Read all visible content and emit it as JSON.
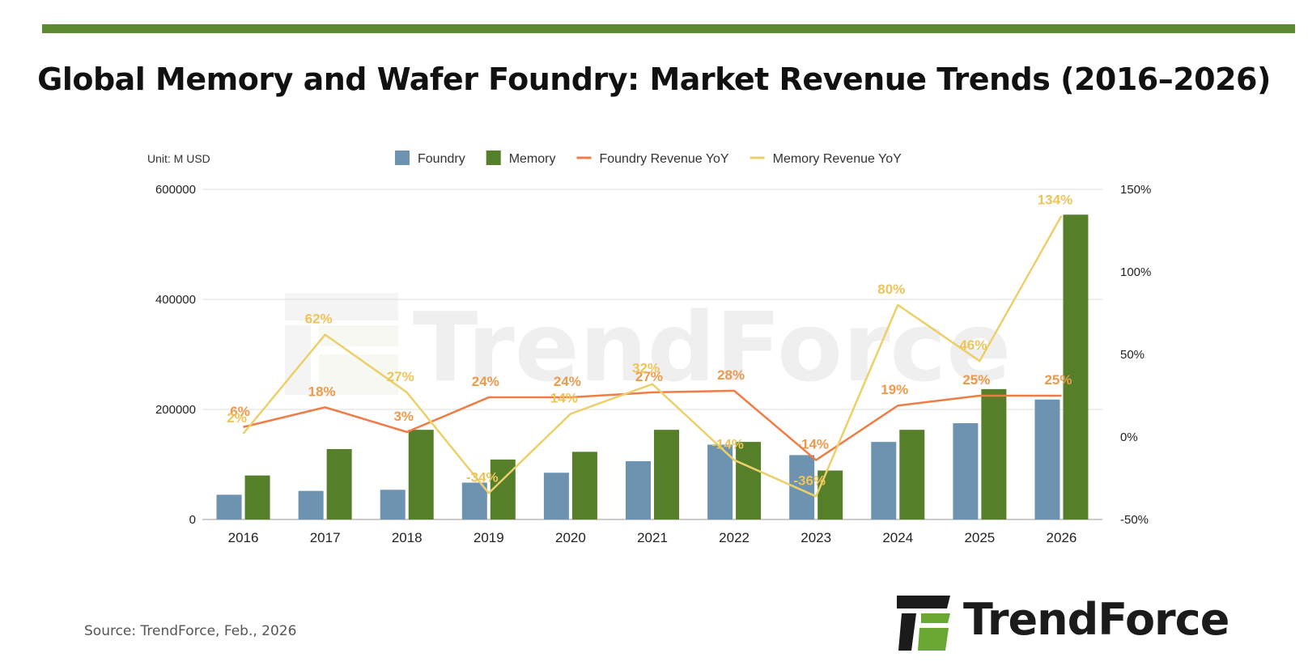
{
  "header": {
    "title": "Global Memory and Wafer Foundry: Market Revenue Trends (2016–2026)"
  },
  "footer": {
    "source": "Source: TrendForce, Feb., 2026",
    "logo_text": "TrendForce",
    "watermark_text": "TrendForce"
  },
  "colors": {
    "accent_bar": "#5b8a33",
    "foundry": "#6d93b0",
    "memory": "#567f2a",
    "foundry_yoy": "#f07b45",
    "memory_yoy": "#ebd06a",
    "foundry_label": "#eb9a4c",
    "memory_label": "#ecc45a"
  },
  "chart_data": {
    "type": "bar",
    "unit_label": "Unit: M USD",
    "categories": [
      "2016",
      "2017",
      "2018",
      "2019",
      "2020",
      "2021",
      "2022",
      "2023",
      "2024",
      "2025",
      "2026"
    ],
    "series": [
      {
        "name": "Foundry",
        "kind": "bar",
        "axis": "left",
        "values": [
          45000,
          52000,
          54000,
          67000,
          85000,
          106000,
          136000,
          117000,
          141000,
          175000,
          218000
        ]
      },
      {
        "name": "Memory",
        "kind": "bar",
        "axis": "left",
        "values": [
          80000,
          128000,
          163000,
          109000,
          123000,
          163000,
          141000,
          89000,
          163000,
          237000,
          554000
        ]
      },
      {
        "name": "Foundry Revenue YoY",
        "kind": "line",
        "axis": "right",
        "values": [
          6,
          18,
          3,
          24,
          24,
          27,
          28,
          -14,
          19,
          25,
          25
        ],
        "labels": [
          "6%",
          "18%",
          "3%",
          "24%",
          "24%",
          "27%",
          "28%",
          "-14%",
          "19%",
          "25%",
          "25%"
        ]
      },
      {
        "name": "Memory Revenue YoY",
        "kind": "line",
        "axis": "right",
        "values": [
          2,
          62,
          27,
          -34,
          14,
          32,
          -14,
          -36,
          80,
          46,
          134
        ],
        "labels": [
          "2%",
          "62%",
          "27%",
          "-34%",
          "14%",
          "32%",
          "-14%",
          "-36%",
          "80%",
          "46%",
          "134%"
        ]
      }
    ],
    "yleft": {
      "ticks": [
        0,
        200000,
        400000,
        600000
      ],
      "tick_labels": [
        "0",
        "200000",
        "400000",
        "600000"
      ],
      "range": [
        0,
        600000
      ]
    },
    "yright": {
      "ticks": [
        -50,
        0,
        50,
        100,
        150
      ],
      "tick_labels": [
        "-50%",
        "0%",
        "50%",
        "100%",
        "150%"
      ],
      "range": [
        -50,
        150
      ]
    },
    "legend_position": "top-center",
    "grid": true
  }
}
